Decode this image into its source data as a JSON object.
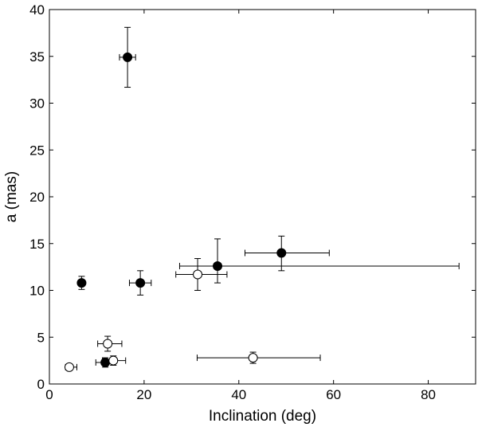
{
  "chart_data": {
    "type": "scatter",
    "title": "",
    "xlabel": "Inclination (deg)",
    "ylabel": "a (mas)",
    "xlim": [
      0,
      90
    ],
    "ylim": [
      0,
      40
    ],
    "xticks": [
      0,
      20,
      40,
      60,
      80
    ],
    "yticks": [
      0,
      5,
      10,
      15,
      20,
      25,
      30,
      35,
      40
    ],
    "grid": false,
    "legend": "none",
    "series": [
      {
        "marker": "filled-circle",
        "color": "#000000",
        "points": [
          {
            "x": 16.5,
            "y": 34.9,
            "x_err": [
              1.7,
              1.7
            ],
            "y_err": [
              3.2,
              3.2
            ]
          },
          {
            "x": 6.8,
            "y": 10.8,
            "x_err": [
              0.3,
              0.3
            ],
            "y_err": [
              0.7,
              0.7
            ]
          },
          {
            "x": 19.2,
            "y": 10.8,
            "x_err": [
              2.3,
              2.3
            ],
            "y_err": [
              1.3,
              1.3
            ]
          },
          {
            "x": 35.5,
            "y": 12.6,
            "x_err": [
              8.0,
              51.0
            ],
            "y_err": [
              1.8,
              2.9
            ]
          },
          {
            "x": 49.0,
            "y": 14.0,
            "x_err": [
              7.7,
              10.1
            ],
            "y_err": [
              1.9,
              1.8
            ]
          },
          {
            "x": 11.8,
            "y": 2.3,
            "x_err": [
              2.0,
              1.5
            ],
            "y_err": [
              0.5,
              0.5
            ]
          }
        ]
      },
      {
        "marker": "open-circle",
        "color": "#000000",
        "points": [
          {
            "x": 31.3,
            "y": 11.7,
            "x_err": [
              4.6,
              6.2
            ],
            "y_err": [
              1.7,
              1.7
            ]
          },
          {
            "x": 12.3,
            "y": 4.3,
            "x_err": [
              2.1,
              3.0
            ],
            "y_err": [
              0.8,
              0.8
            ]
          },
          {
            "x": 13.5,
            "y": 2.5,
            "x_err": [
              2.3,
              2.6
            ],
            "y_err": [
              0.5,
              0.5
            ]
          },
          {
            "x": 4.2,
            "y": 1.8,
            "x_err": [
              0.8,
              1.6
            ],
            "y_err": [
              0.3,
              0.3
            ]
          },
          {
            "x": 43.0,
            "y": 2.8,
            "x_err": [
              11.8,
              14.2
            ],
            "y_err": [
              0.6,
              0.6
            ]
          }
        ]
      }
    ]
  }
}
